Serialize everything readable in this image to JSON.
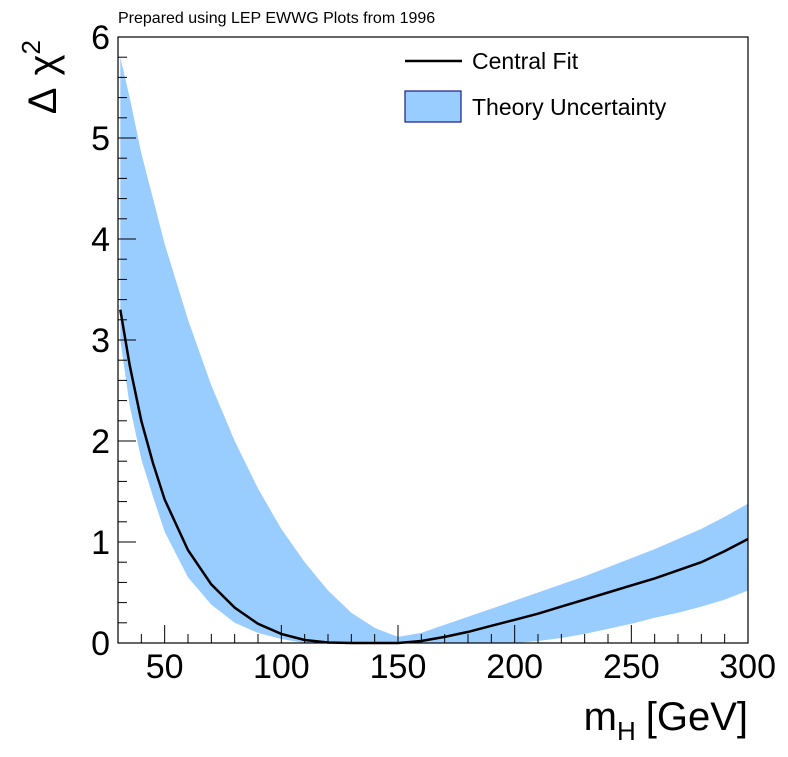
{
  "chart_data": {
    "type": "area",
    "note": "Prepared using LEP EWWG Plots from 1996",
    "xlabel": "m",
    "xlabel_sub": "H",
    "xlabel_unit": "[GeV]",
    "ylabel_delta": "Δ",
    "ylabel_chi": "χ",
    "ylabel_sup": "2",
    "xlim": [
      30,
      300
    ],
    "ylim": [
      0,
      6
    ],
    "x_ticks": [
      50,
      100,
      150,
      200,
      250,
      300
    ],
    "y_ticks": [
      0,
      1,
      2,
      3,
      4,
      5,
      6
    ],
    "legend": {
      "position": "top-right",
      "entries": [
        {
          "label": "Central Fit",
          "kind": "line"
        },
        {
          "label": "Theory Uncertainty",
          "kind": "band"
        }
      ]
    },
    "series": [
      {
        "name": "Central Fit",
        "kind": "line",
        "color": "#000000",
        "points": [
          [
            31,
            3.3
          ],
          [
            35,
            2.75
          ],
          [
            40,
            2.2
          ],
          [
            45,
            1.78
          ],
          [
            50,
            1.42
          ],
          [
            60,
            0.92
          ],
          [
            70,
            0.58
          ],
          [
            80,
            0.35
          ],
          [
            90,
            0.19
          ],
          [
            100,
            0.09
          ],
          [
            110,
            0.03
          ],
          [
            120,
            0.005
          ],
          [
            130,
            0.0
          ],
          [
            140,
            0.0
          ],
          [
            150,
            0.0
          ],
          [
            160,
            0.02
          ],
          [
            170,
            0.06
          ],
          [
            180,
            0.11
          ],
          [
            190,
            0.17
          ],
          [
            200,
            0.23
          ],
          [
            210,
            0.29
          ],
          [
            220,
            0.36
          ],
          [
            230,
            0.43
          ],
          [
            240,
            0.5
          ],
          [
            250,
            0.57
          ],
          [
            260,
            0.64
          ],
          [
            270,
            0.72
          ],
          [
            280,
            0.8
          ],
          [
            290,
            0.91
          ],
          [
            300,
            1.03
          ]
        ]
      },
      {
        "name": "Theory Uncertainty",
        "kind": "band",
        "color": "#99ccff",
        "edge_color": "#1a1a8c",
        "upper": [
          [
            31,
            5.8
          ],
          [
            35,
            5.4
          ],
          [
            40,
            4.85
          ],
          [
            45,
            4.4
          ],
          [
            50,
            3.95
          ],
          [
            60,
            3.2
          ],
          [
            70,
            2.55
          ],
          [
            80,
            2.0
          ],
          [
            90,
            1.53
          ],
          [
            100,
            1.13
          ],
          [
            110,
            0.8
          ],
          [
            120,
            0.52
          ],
          [
            130,
            0.3
          ],
          [
            140,
            0.15
          ],
          [
            150,
            0.06
          ],
          [
            155,
            0.08
          ],
          [
            160,
            0.1
          ],
          [
            170,
            0.18
          ],
          [
            180,
            0.26
          ],
          [
            190,
            0.34
          ],
          [
            200,
            0.42
          ],
          [
            210,
            0.5
          ],
          [
            220,
            0.58
          ],
          [
            230,
            0.66
          ],
          [
            240,
            0.75
          ],
          [
            250,
            0.84
          ],
          [
            260,
            0.93
          ],
          [
            270,
            1.03
          ],
          [
            280,
            1.13
          ],
          [
            290,
            1.25
          ],
          [
            300,
            1.38
          ]
        ],
        "lower": [
          [
            31,
            3.0
          ],
          [
            35,
            2.35
          ],
          [
            40,
            1.82
          ],
          [
            45,
            1.45
          ],
          [
            50,
            1.1
          ],
          [
            60,
            0.65
          ],
          [
            70,
            0.38
          ],
          [
            80,
            0.2
          ],
          [
            90,
            0.1
          ],
          [
            100,
            0.04
          ],
          [
            110,
            0.0
          ],
          [
            120,
            0.0
          ],
          [
            130,
            0.0
          ],
          [
            140,
            0.0
          ],
          [
            150,
            0.0
          ],
          [
            160,
            0.0
          ],
          [
            170,
            0.0
          ],
          [
            180,
            0.0
          ],
          [
            190,
            0.0
          ],
          [
            200,
            0.0
          ],
          [
            210,
            0.02
          ],
          [
            220,
            0.05
          ],
          [
            230,
            0.09
          ],
          [
            240,
            0.14
          ],
          [
            250,
            0.19
          ],
          [
            260,
            0.25
          ],
          [
            270,
            0.3
          ],
          [
            280,
            0.36
          ],
          [
            290,
            0.43
          ],
          [
            300,
            0.52
          ]
        ]
      }
    ]
  }
}
